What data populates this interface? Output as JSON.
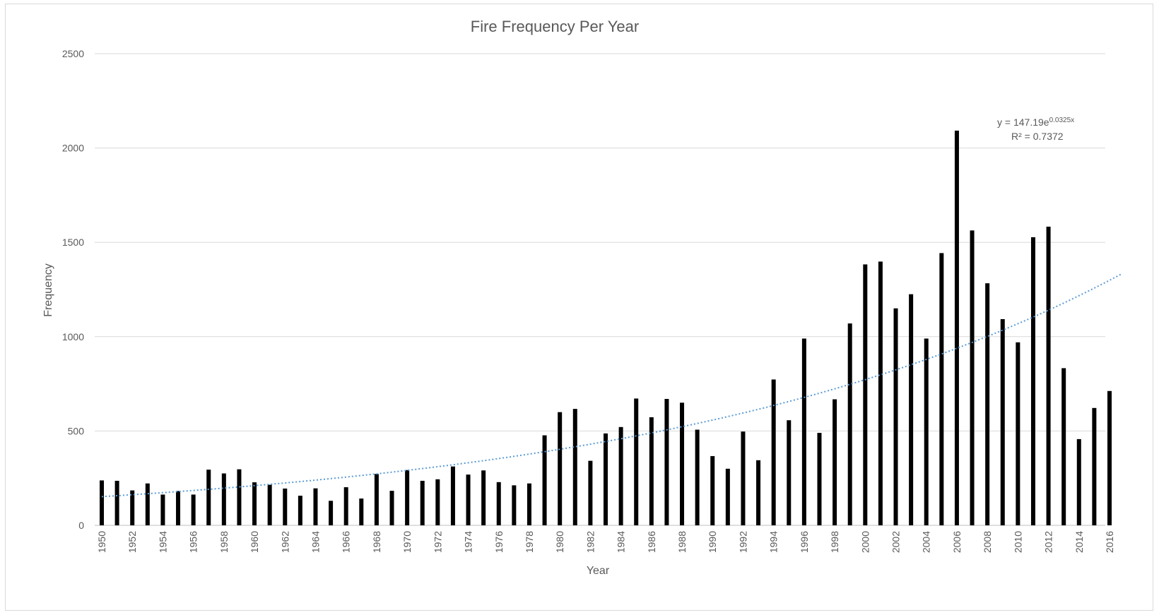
{
  "chart_data": {
    "type": "bar",
    "title": "Fire Frequency Per Year",
    "xlabel": "Year",
    "ylabel": "Frequency",
    "ylim": [
      0,
      2500
    ],
    "yticks": [
      "0",
      "500",
      "1000",
      "1500",
      "2000",
      "2500"
    ],
    "grid": true,
    "bar_color": "#000000",
    "categories": [
      1950,
      1951,
      1952,
      1953,
      1954,
      1955,
      1956,
      1957,
      1958,
      1959,
      1960,
      1961,
      1962,
      1963,
      1964,
      1965,
      1966,
      1967,
      1968,
      1969,
      1970,
      1971,
      1972,
      1973,
      1974,
      1975,
      1976,
      1977,
      1978,
      1979,
      1980,
      1981,
      1982,
      1983,
      1984,
      1985,
      1986,
      1987,
      1988,
      1989,
      1990,
      1991,
      1992,
      1993,
      1994,
      1995,
      1996,
      1997,
      1998,
      1999,
      2000,
      2001,
      2002,
      2003,
      2004,
      2005,
      2006,
      2007,
      2008,
      2009,
      2010,
      2011,
      2012,
      2013,
      2014,
      2015,
      2016
    ],
    "xtick_labels": [
      "1950",
      "1952",
      "1954",
      "1956",
      "1958",
      "1960",
      "1962",
      "1964",
      "1966",
      "1968",
      "1970",
      "1972",
      "1974",
      "1976",
      "1978",
      "1980",
      "1982",
      "1984",
      "1986",
      "1988",
      "1990",
      "1992",
      "1994",
      "1996",
      "1998",
      "2000",
      "2002",
      "2004",
      "2006",
      "2008",
      "2010",
      "2012",
      "2014",
      "2016"
    ],
    "values": [
      238,
      236,
      185,
      222,
      163,
      182,
      163,
      295,
      275,
      297,
      228,
      215,
      195,
      157,
      196,
      130,
      202,
      142,
      272,
      183,
      293,
      236,
      244,
      312,
      269,
      291,
      229,
      212,
      222,
      477,
      600,
      617,
      342,
      487,
      521,
      672,
      573,
      670,
      650,
      507,
      367,
      300,
      497,
      345,
      773,
      557,
      990,
      490,
      668,
      1070,
      1383,
      1398,
      1150,
      1225,
      990,
      1443,
      2092,
      1563,
      1283,
      1093,
      970,
      1527,
      1583,
      833,
      457,
      622,
      712
    ],
    "trendline": {
      "type": "exponential",
      "a": 147.19,
      "b": 0.0325,
      "color": "#5b9bd5",
      "style": "dotted",
      "equation": {
        "prefix": "y = 147.19e",
        "exponent": "0.0325x",
        "r_squared": "R² = 0.7372"
      }
    }
  }
}
